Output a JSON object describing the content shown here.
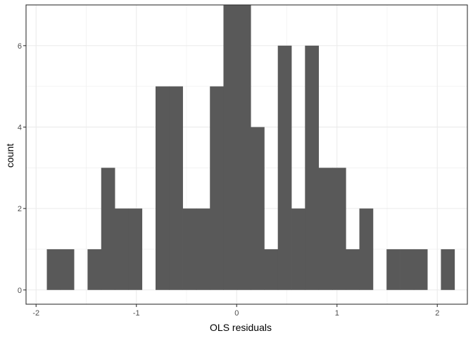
{
  "chart_data": {
    "type": "bar",
    "xlabel": "OLS residuals",
    "ylabel": "count",
    "xlim": [
      -2.1,
      2.3
    ],
    "ylim": [
      -0.35,
      7.0
    ],
    "x_ticks": [
      {
        "value": -2,
        "label": "-2"
      },
      {
        "value": -1,
        "label": "-1"
      },
      {
        "value": 0,
        "label": "0"
      },
      {
        "value": 1,
        "label": "1"
      },
      {
        "value": 2,
        "label": "2"
      }
    ],
    "y_ticks": [
      {
        "value": 0,
        "label": "0"
      },
      {
        "value": 2,
        "label": "2"
      },
      {
        "value": 4,
        "label": "4"
      },
      {
        "value": 6,
        "label": "6"
      }
    ],
    "bin_width": 0.1355,
    "bins": [
      {
        "x": -1.825,
        "count": 1
      },
      {
        "x": -1.69,
        "count": 1
      },
      {
        "x": -1.554,
        "count": 0
      },
      {
        "x": -1.419,
        "count": 1
      },
      {
        "x": -1.283,
        "count": 3
      },
      {
        "x": -1.148,
        "count": 2
      },
      {
        "x": -1.012,
        "count": 2
      },
      {
        "x": -0.877,
        "count": 0
      },
      {
        "x": -0.741,
        "count": 5
      },
      {
        "x": -0.606,
        "count": 5
      },
      {
        "x": -0.47,
        "count": 2
      },
      {
        "x": -0.335,
        "count": 2
      },
      {
        "x": -0.199,
        "count": 5
      },
      {
        "x": -0.064,
        "count": 7
      },
      {
        "x": 0.072,
        "count": 7
      },
      {
        "x": 0.207,
        "count": 4
      },
      {
        "x": 0.343,
        "count": 1
      },
      {
        "x": 0.478,
        "count": 6
      },
      {
        "x": 0.614,
        "count": 2
      },
      {
        "x": 0.749,
        "count": 6
      },
      {
        "x": 0.885,
        "count": 3
      },
      {
        "x": 1.02,
        "count": 3
      },
      {
        "x": 1.156,
        "count": 1
      },
      {
        "x": 1.291,
        "count": 2
      },
      {
        "x": 1.427,
        "count": 0
      },
      {
        "x": 1.562,
        "count": 1
      },
      {
        "x": 1.698,
        "count": 1
      },
      {
        "x": 1.833,
        "count": 1
      },
      {
        "x": 1.969,
        "count": 0
      },
      {
        "x": 2.104,
        "count": 1
      }
    ],
    "grid": true,
    "colors": {
      "bar": "#595959",
      "grid": "#ebebeb",
      "panel_border": "#333333",
      "background": "#ffffff"
    }
  }
}
